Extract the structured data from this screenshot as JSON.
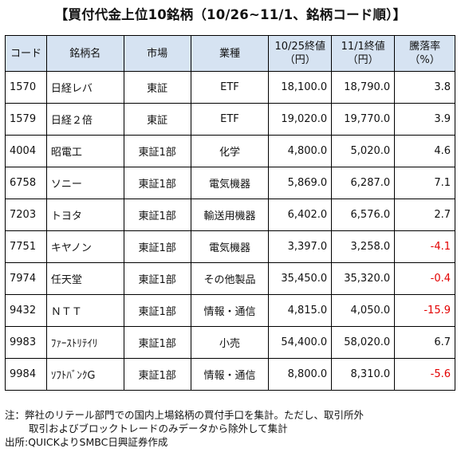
{
  "title": "【買付代金上位10銘柄（10/26~11/1、銘柄コード順）】",
  "headers": {
    "code": "コード",
    "name": "銘柄名",
    "market": "市場",
    "industry": "業種",
    "price_start_line1": "10/25終値",
    "price_start_line2": "（円）",
    "price_end_line1": "11/1終値",
    "price_end_line2": "（円）",
    "change_line1": "騰落率",
    "change_line2": "（%）"
  },
  "rows": [
    {
      "code": "1570",
      "name": "日経レバ",
      "market": "東証",
      "industry": "ETF",
      "price_start": "18,100.0",
      "price_end": "18,790.0",
      "change": "3.8"
    },
    {
      "code": "1579",
      "name": "日経２倍",
      "market": "東証",
      "industry": "ETF",
      "price_start": "19,020.0",
      "price_end": "19,770.0",
      "change": "3.9"
    },
    {
      "code": "4004",
      "name": "昭電工",
      "market": "東証1部",
      "industry": "化学",
      "price_start": "4,800.0",
      "price_end": "5,020.0",
      "change": "4.6"
    },
    {
      "code": "6758",
      "name": "ソニー",
      "market": "東証1部",
      "industry": "電気機器",
      "price_start": "5,869.0",
      "price_end": "6,287.0",
      "change": "7.1"
    },
    {
      "code": "7203",
      "name": "トヨタ",
      "market": "東証1部",
      "industry": "輸送用機器",
      "price_start": "6,402.0",
      "price_end": "6,576.0",
      "change": "2.7"
    },
    {
      "code": "7751",
      "name": "キヤノン",
      "market": "東証1部",
      "industry": "電気機器",
      "price_start": "3,397.0",
      "price_end": "3,258.0",
      "change": "-4.1"
    },
    {
      "code": "7974",
      "name": "任天堂",
      "market": "東証1部",
      "industry": "その他製品",
      "price_start": "35,450.0",
      "price_end": "35,320.0",
      "change": "-0.4"
    },
    {
      "code": "9432",
      "name": "ＮＴＴ",
      "market": "東証1部",
      "industry": "情報・通信",
      "price_start": "4,815.0",
      "price_end": "4,050.0",
      "change": "-15.9"
    },
    {
      "code": "9983",
      "name": "ﾌｧｰｽﾄﾘﾃｲﾘ",
      "market": "東証1部",
      "industry": "小売",
      "price_start": "54,400.0",
      "price_end": "58,020.0",
      "change": "6.7"
    },
    {
      "code": "9984",
      "name": "ｿﾌﾄﾊﾞﾝｸG",
      "market": "東証1部",
      "industry": "情報・通信",
      "price_start": "8,800.0",
      "price_end": "8,310.0",
      "change": "-5.6"
    }
  ],
  "notes": {
    "line1": "注：弊社のリテール部門での国内上場銘柄の買付手口を集計。ただし、取引所外",
    "line2": "取引およびブロックトレードのみデータから除外して集計",
    "line3": "出所:QUICKよりSMBC日興証券作成"
  },
  "colors": {
    "header_bg": "#d6e3f2",
    "negative": "#e30000",
    "border": "#000000"
  }
}
